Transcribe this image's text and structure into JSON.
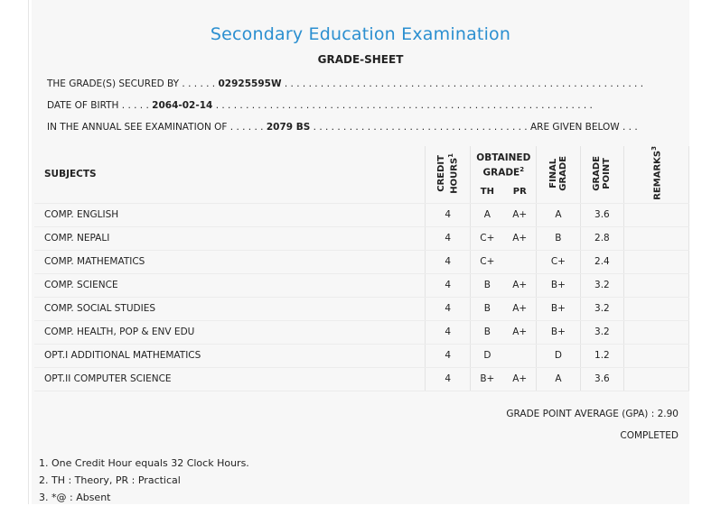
{
  "header": {
    "title": "Secondary Education Examination",
    "subtitle": "GRADE-SHEET",
    "secured_label": "THE GRADE(S) SECURED BY . . . . . .",
    "symbol_no": "02925595W",
    "secured_dots": ". . . . . . . . . . . . . . . . . . . . . . . . . . . . . . . . . . . . . . . . . . . . . . . . . . . . . . . . . . . .",
    "dob_label": "DATE OF BIRTH . . . . .",
    "dob": "2064-02-14",
    "dob_dots": ". . . . . . . . . . . . . . . . . . . . . . . . . . . . . . . . . . . . . . . . . . . . . . . . . . . . . . . . . . . . . . .",
    "exam_label": "IN THE ANNUAL SEE EXAMINATION OF . . . . . .",
    "exam_year": "2079 BS",
    "exam_dots": ". . . . . . . . . . . . . . . . . . . . . . . . . . . . . . . . . . . .",
    "exam_suffix": "ARE GIVEN BELOW . . ."
  },
  "table": {
    "col_subjects": "SUBJECTS",
    "col_credit": "CREDIT HOURS",
    "col_credit_sup": "1",
    "col_obtained": "OBTAINED GRADE",
    "col_obtained_sup": "2",
    "col_th": "TH",
    "col_pr": "PR",
    "col_final": "FINAL GRADE",
    "col_gp": "GRADE POINT",
    "col_remarks": "REMARKS",
    "col_remarks_sup": "3",
    "rows": [
      {
        "subject": "COMP. ENGLISH",
        "credit": "4",
        "th": "A",
        "pr": "A+",
        "final": "A",
        "gp": "3.6"
      },
      {
        "subject": "COMP. NEPALI",
        "credit": "4",
        "th": "C+",
        "pr": "A+",
        "final": "B",
        "gp": "2.8"
      },
      {
        "subject": "COMP. MATHEMATICS",
        "credit": "4",
        "th": "C+",
        "pr": "",
        "final": "C+",
        "gp": "2.4"
      },
      {
        "subject": "COMP. SCIENCE",
        "credit": "4",
        "th": "B",
        "pr": "A+",
        "final": "B+",
        "gp": "3.2"
      },
      {
        "subject": "COMP. SOCIAL STUDIES",
        "credit": "4",
        "th": "B",
        "pr": "A+",
        "final": "B+",
        "gp": "3.2"
      },
      {
        "subject": "COMP. HEALTH, POP & ENV EDU",
        "credit": "4",
        "th": "B",
        "pr": "A+",
        "final": "B+",
        "gp": "3.2"
      },
      {
        "subject": "OPT.I ADDITIONAL MATHEMATICS",
        "credit": "4",
        "th": "D",
        "pr": "",
        "final": "D",
        "gp": "1.2"
      },
      {
        "subject": "OPT.II COMPUTER SCIENCE",
        "credit": "4",
        "th": "B+",
        "pr": "A+",
        "final": "A",
        "gp": "3.6"
      }
    ]
  },
  "summary": {
    "gpa_label": "GRADE POINT AVERAGE (GPA) : 2.90",
    "status": "COMPLETED"
  },
  "notes": [
    "1. One Credit Hour equals 32 Clock Hours.",
    "2. TH : Theory, PR : Practical",
    "3. *@ : Absent"
  ]
}
